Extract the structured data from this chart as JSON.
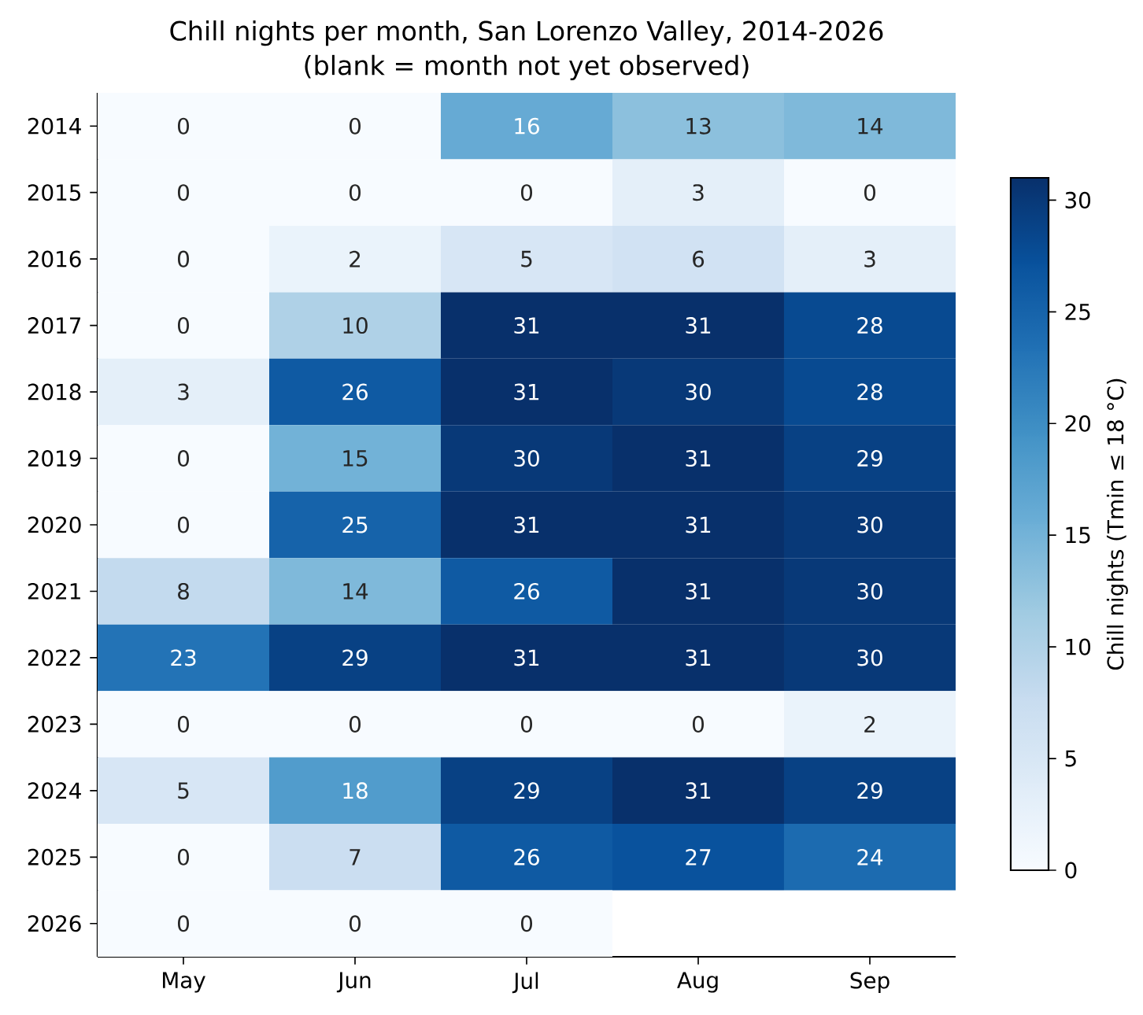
{
  "chart_data": {
    "type": "heatmap",
    "title": "Chill nights per month, San Lorenzo Valley, 2014-2026",
    "subtitle": "(blank = month not yet observed)",
    "clabel": "Chill nights (Tmin ≤ 18 °C)",
    "categories": [
      "May",
      "Jun",
      "Jul",
      "Aug",
      "Sep"
    ],
    "y_categories": [
      "2014",
      "2015",
      "2016",
      "2017",
      "2018",
      "2019",
      "2020",
      "2021",
      "2022",
      "2023",
      "2024",
      "2025",
      "2026"
    ],
    "cells": [
      [
        0,
        0,
        16,
        13,
        14
      ],
      [
        0,
        0,
        0,
        3,
        0
      ],
      [
        0,
        2,
        5,
        6,
        3
      ],
      [
        0,
        10,
        31,
        31,
        28
      ],
      [
        3,
        26,
        31,
        30,
        28
      ],
      [
        0,
        15,
        30,
        31,
        29
      ],
      [
        0,
        25,
        31,
        31,
        30
      ],
      [
        8,
        14,
        26,
        31,
        30
      ],
      [
        23,
        29,
        31,
        31,
        30
      ],
      [
        0,
        0,
        0,
        0,
        2
      ],
      [
        5,
        18,
        29,
        31,
        29
      ],
      [
        0,
        7,
        26,
        27,
        24
      ],
      [
        0,
        0,
        0,
        null,
        null
      ]
    ],
    "clim": [
      0,
      31
    ],
    "cticks": [
      0,
      5,
      10,
      15,
      20,
      25,
      30
    ],
    "data_labels": true
  }
}
